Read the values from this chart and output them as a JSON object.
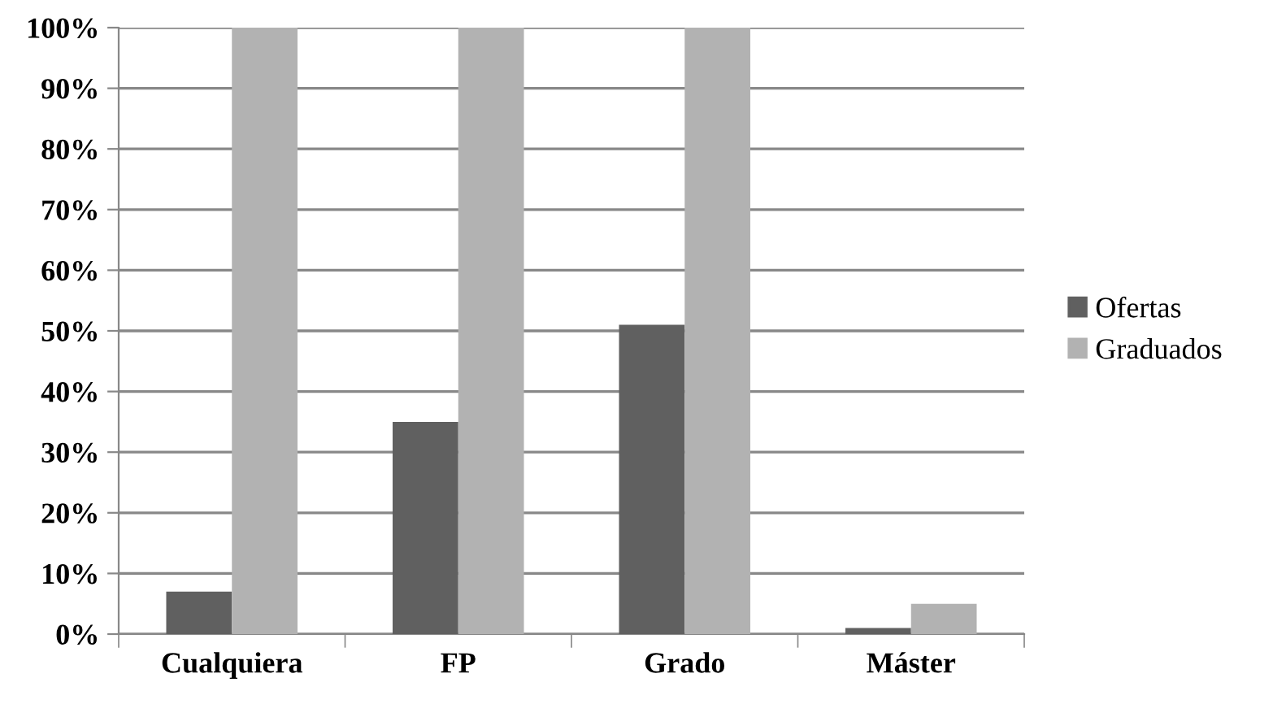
{
  "chart_data": {
    "type": "bar",
    "categories": [
      "Cualquiera",
      "FP",
      "Grado",
      "Máster"
    ],
    "series": [
      {
        "name": "Ofertas",
        "color": "#606060",
        "values": [
          7,
          35,
          51,
          1
        ]
      },
      {
        "name": "Graduados",
        "color": "#b2b2b2",
        "values": [
          100,
          100,
          100,
          5
        ]
      }
    ],
    "ylim": [
      0,
      100
    ],
    "yticks": [
      {
        "value": 0,
        "label": "0%"
      },
      {
        "value": 10,
        "label": "10%"
      },
      {
        "value": 20,
        "label": "20%"
      },
      {
        "value": 30,
        "label": "30%"
      },
      {
        "value": 40,
        "label": "40%"
      },
      {
        "value": 50,
        "label": "50%"
      },
      {
        "value": 60,
        "label": "60%"
      },
      {
        "value": 70,
        "label": "70%"
      },
      {
        "value": 80,
        "label": "80%"
      },
      {
        "value": 90,
        "label": "90%"
      },
      {
        "value": 100,
        "label": "100%"
      }
    ],
    "grid": "y",
    "legend": "right"
  }
}
